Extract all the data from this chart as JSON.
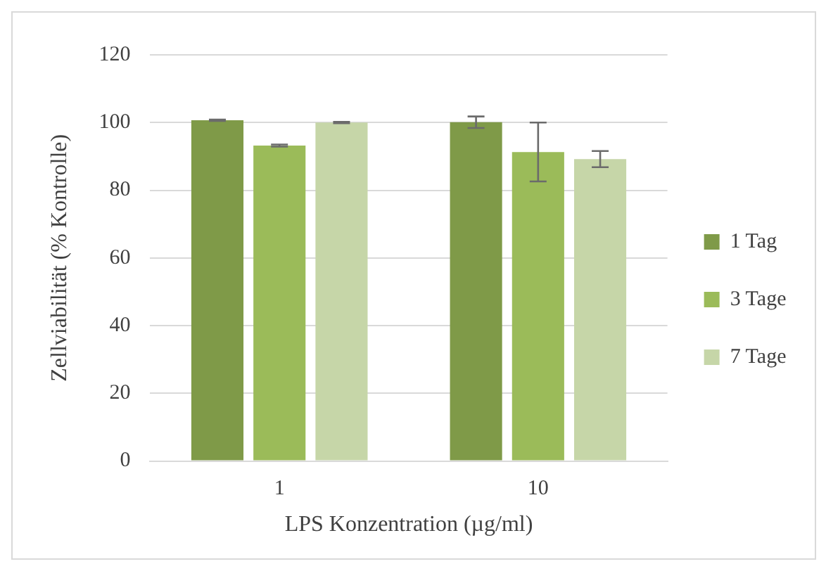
{
  "chart_data": {
    "type": "bar",
    "xlabel": "LPS Konzentration (µg/ml)",
    "ylabel": "Zellviabilität (% Kontrolle)",
    "categories": [
      "1",
      "10"
    ],
    "series": [
      {
        "name": "1 Tag",
        "color": "#7f9a48",
        "values": [
          100.7,
          100.1
        ],
        "errors": [
          0.2,
          1.7
        ]
      },
      {
        "name": "3 Tage",
        "color": "#9bbb59",
        "values": [
          93.2,
          91.3
        ],
        "errors": [
          0.3,
          8.7
        ]
      },
      {
        "name": "7 Tage",
        "color": "#c6d6a8",
        "values": [
          100,
          89.2
        ],
        "errors": [
          0.2,
          2.4
        ]
      }
    ],
    "ylim": [
      0,
      120
    ],
    "yticks": [
      0,
      20,
      40,
      60,
      80,
      100,
      120
    ],
    "grid": "y",
    "legend": "right"
  }
}
